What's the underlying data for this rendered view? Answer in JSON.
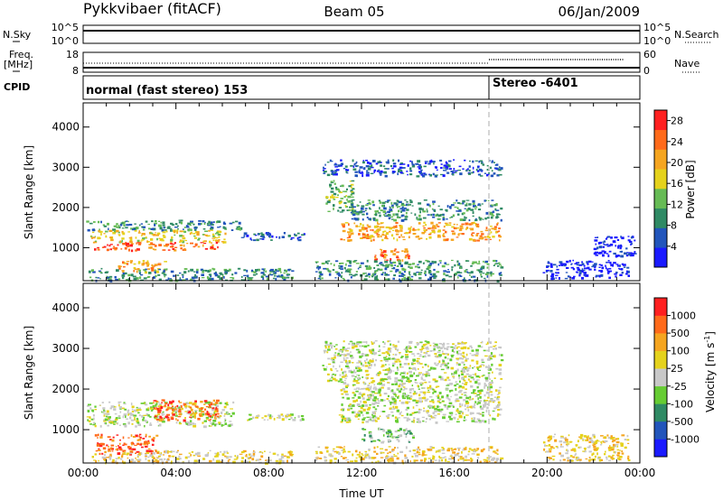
{
  "header": {
    "station": "Pykkvibaer (fitACF)",
    "beam": "Beam 05",
    "date": "06/Jan/2009"
  },
  "strips": {
    "nsky": {
      "label": "N.Sky",
      "top_tick": "10^5",
      "bottom_tick": "10^0",
      "right_label": "N.Search",
      "right_top_tick": "10^5",
      "right_bottom_tick": "10^0"
    },
    "freq": {
      "label": "Freq.",
      "unit": "[MHz]",
      "top_tick": "18",
      "bottom_tick": "8",
      "right_label": "Nave",
      "right_top_tick": "60",
      "right_bottom_tick": "0"
    },
    "cpid": {
      "label": "CPID",
      "segments": [
        {
          "start_hour": 0,
          "text": "normal (fast stereo) 153"
        },
        {
          "start_hour": 18,
          "text": "Stereo -6401"
        }
      ]
    }
  },
  "chart_data": [
    {
      "type": "heatmap",
      "panel": "power",
      "ylabel": "Slant Range [km]",
      "xlabel": "",
      "xlim": [
        0,
        24
      ],
      "ylim": [
        180,
        4600
      ],
      "yticks": [
        "1000",
        "2000",
        "3000",
        "4000"
      ],
      "colorbar": {
        "label": "Power [dB]",
        "ticks": [
          "4",
          "8",
          "12",
          "16",
          "20",
          "24",
          "28"
        ],
        "tick_values": [
          4,
          8,
          12,
          16,
          20,
          24,
          28
        ],
        "range": [
          0,
          30
        ],
        "colors": [
          "#1a1aff",
          "#2255bb",
          "#2f8a64",
          "#66bb55",
          "#e5d21c",
          "#f5a520",
          "#ff6a1a",
          "#ff2020"
        ]
      },
      "regions": [
        {
          "t0": 0.1,
          "t1": 6.8,
          "r0": 1450,
          "r1": 1700,
          "level": 2
        },
        {
          "t0": 0.3,
          "t1": 6.2,
          "r0": 1150,
          "r1": 1450,
          "level": 4
        },
        {
          "t0": 0.4,
          "t1": 5.8,
          "r0": 950,
          "r1": 1150,
          "level": 6
        },
        {
          "t0": 1.5,
          "t1": 3.5,
          "r0": 400,
          "r1": 700,
          "level": 5
        },
        {
          "t0": 0.2,
          "t1": 9.0,
          "r0": 200,
          "r1": 500,
          "level": 2
        },
        {
          "t0": 6.8,
          "t1": 9.5,
          "r0": 1200,
          "r1": 1400,
          "level": 1
        },
        {
          "t0": 10.3,
          "t1": 18.0,
          "r0": 2800,
          "r1": 3200,
          "level": 1
        },
        {
          "t0": 10.4,
          "t1": 11.6,
          "r0": 1900,
          "r1": 2700,
          "level": 3
        },
        {
          "t0": 11.5,
          "t1": 18.0,
          "r0": 1700,
          "r1": 2200,
          "level": 2
        },
        {
          "t0": 11.0,
          "t1": 18.0,
          "r0": 1200,
          "r1": 1650,
          "level": 5
        },
        {
          "t0": 12.5,
          "t1": 14.0,
          "r0": 700,
          "r1": 1000,
          "level": 6
        },
        {
          "t0": 10.0,
          "t1": 18.0,
          "r0": 200,
          "r1": 700,
          "level": 2
        },
        {
          "t0": 19.8,
          "t1": 23.5,
          "r0": 250,
          "r1": 700,
          "level": 0
        },
        {
          "t0": 22.0,
          "t1": 23.8,
          "r0": 800,
          "r1": 1300,
          "level": 0
        }
      ]
    },
    {
      "type": "heatmap",
      "panel": "velocity",
      "ylabel": "Slant Range [km]",
      "xlabel": "Time UT",
      "xlim": [
        0,
        24
      ],
      "ylim": [
        180,
        4600
      ],
      "xticks": [
        "00:00",
        "04:00",
        "08:00",
        "12:00",
        "16:00",
        "20:00",
        "00:00"
      ],
      "yticks": [
        "1000",
        "2000",
        "3000",
        "4000"
      ],
      "colorbar": {
        "label": "Velocity [m s",
        "label_superscript": "-1",
        "label_close": "]",
        "ticks": [
          "1000",
          "500",
          "100",
          "25",
          "-25",
          "-100",
          "-500",
          "-1000"
        ],
        "colors": [
          "#1a1aff",
          "#2255bb",
          "#2f8a64",
          "#66cc33",
          "#c8c8c8",
          "#e5d21c",
          "#f5a520",
          "#ff6a1a",
          "#ff2020"
        ]
      },
      "regions": [
        {
          "t0": 0.1,
          "t1": 6.5,
          "r0": 1100,
          "r1": 1700,
          "level": 4
        },
        {
          "t0": 3.0,
          "t1": 5.8,
          "r0": 1250,
          "r1": 1750,
          "level": 7
        },
        {
          "t0": 0.5,
          "t1": 3.2,
          "r0": 400,
          "r1": 900,
          "level": 7
        },
        {
          "t0": 0.2,
          "t1": 9.0,
          "r0": 200,
          "r1": 500,
          "level": 5
        },
        {
          "t0": 6.8,
          "t1": 9.5,
          "r0": 1250,
          "r1": 1400,
          "level": 4
        },
        {
          "t0": 10.3,
          "t1": 18.0,
          "r0": 2200,
          "r1": 3200,
          "level": 4
        },
        {
          "t0": 11.0,
          "t1": 18.0,
          "r0": 1200,
          "r1": 2200,
          "level": 4
        },
        {
          "t0": 12.0,
          "t1": 14.2,
          "r0": 700,
          "r1": 1050,
          "level": 3
        },
        {
          "t0": 10.0,
          "t1": 18.0,
          "r0": 200,
          "r1": 600,
          "level": 5
        },
        {
          "t0": 19.8,
          "t1": 23.5,
          "r0": 250,
          "r1": 900,
          "level": 5
        }
      ]
    }
  ],
  "markers": {
    "dashed_line_hour": 18
  }
}
